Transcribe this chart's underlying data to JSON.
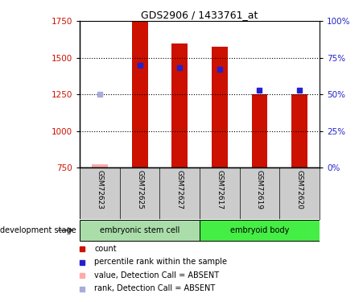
{
  "title": "GDS2906 / 1433761_at",
  "samples": [
    "GSM72623",
    "GSM72625",
    "GSM72627",
    "GSM72617",
    "GSM72619",
    "GSM72620"
  ],
  "groups": [
    "embryonic stem cell",
    "embryonic stem cell",
    "embryonic stem cell",
    "embryoid body",
    "embryoid body",
    "embryoid body"
  ],
  "bar_values": [
    770,
    1750,
    1600,
    1575,
    1250,
    1250
  ],
  "bar_absent": [
    true,
    false,
    false,
    false,
    false,
    false
  ],
  "percentile_values": [
    50,
    70,
    68,
    67,
    53,
    53
  ],
  "percentile_absent": [
    true,
    false,
    false,
    false,
    false,
    false
  ],
  "ylim_left": [
    750,
    1750
  ],
  "ylim_right": [
    0,
    100
  ],
  "yticks_left": [
    750,
    1000,
    1250,
    1500,
    1750
  ],
  "yticks_right": [
    0,
    25,
    50,
    75,
    100
  ],
  "ytick_labels_right": [
    "0%",
    "25%",
    "50%",
    "75%",
    "100%"
  ],
  "bar_color": "#cc1100",
  "bar_absent_color": "#ffaaaa",
  "percentile_color": "#2222cc",
  "percentile_absent_color": "#aaaadd",
  "group_colors": [
    "#aaddaa",
    "#44ee44"
  ],
  "group_names": [
    "embryonic stem cell",
    "embryoid body"
  ],
  "sample_bg_color": "#cccccc",
  "background_color": "#ffffff",
  "bar_width": 0.4,
  "legend_items": [
    {
      "label": "count",
      "color": "#cc1100"
    },
    {
      "label": "percentile rank within the sample",
      "color": "#2222cc"
    },
    {
      "label": "value, Detection Call = ABSENT",
      "color": "#ffaaaa"
    },
    {
      "label": "rank, Detection Call = ABSENT",
      "color": "#aaaadd"
    }
  ],
  "dev_stage_label": "development stage"
}
